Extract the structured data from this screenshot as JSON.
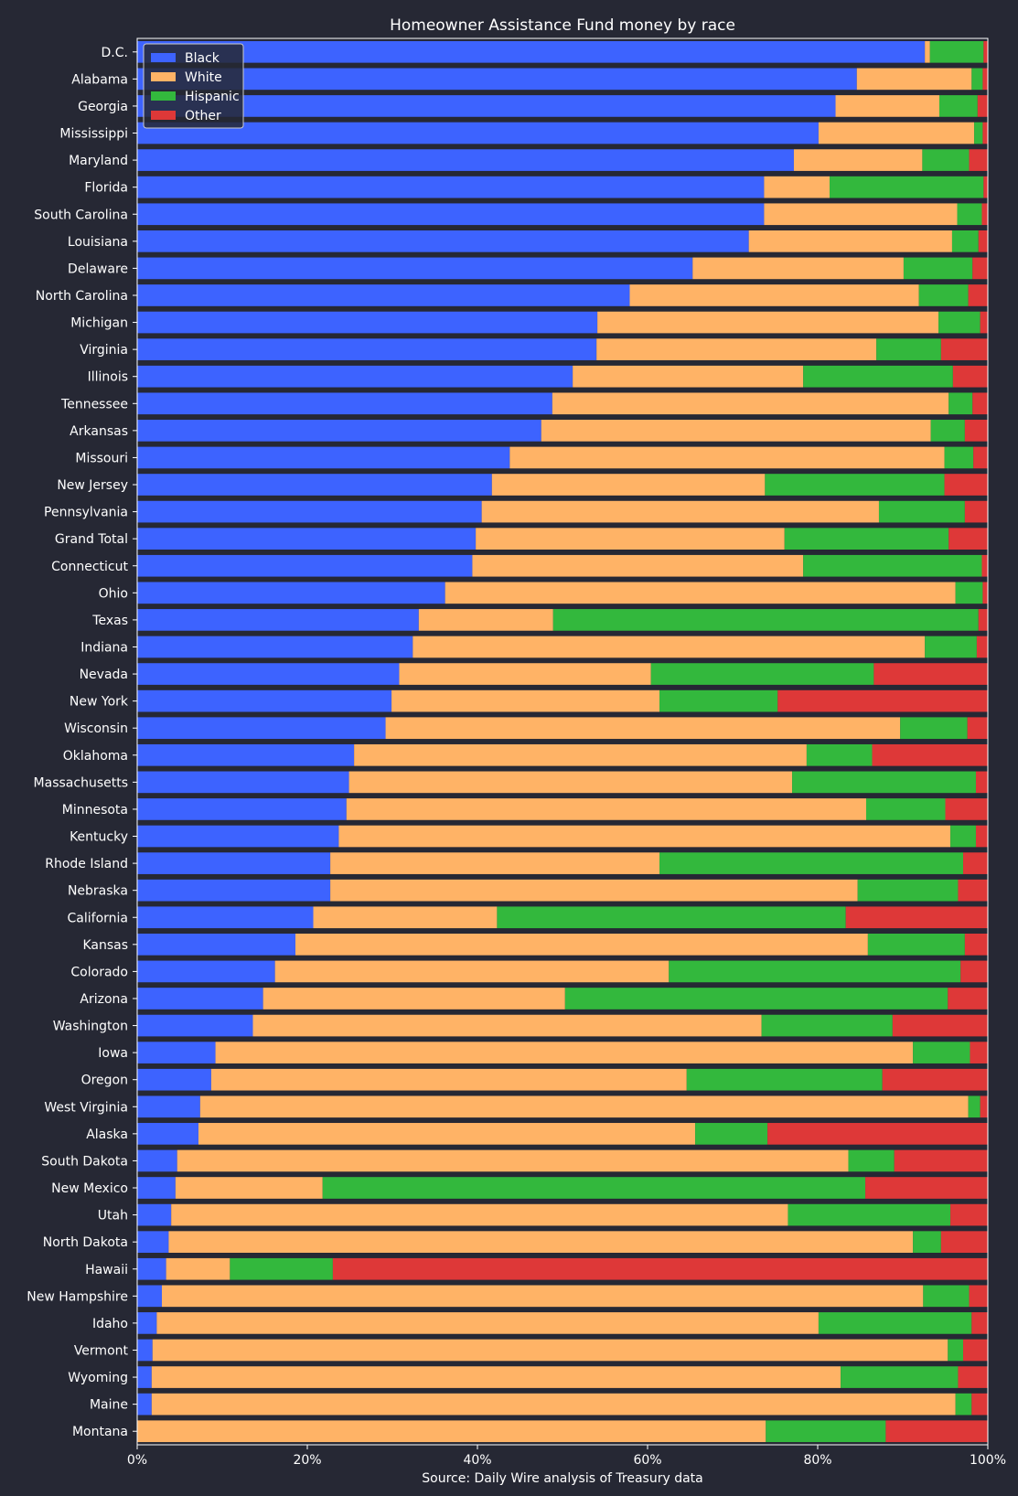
{
  "chart_data": {
    "type": "bar",
    "orientation": "horizontal",
    "stacked": true,
    "title": "Homeowner Assistance Fund money by race",
    "xlabel": "Source: Daily Wire analysis of Treasury data",
    "xlim": [
      0,
      100
    ],
    "x_ticks": [
      "0%",
      "20%",
      "40%",
      "60%",
      "80%",
      "100%"
    ],
    "legend_position": "top-left",
    "grid": false,
    "categories": [
      "D.C.",
      "Alabama",
      "Georgia",
      "Mississippi",
      "Maryland",
      "Florida",
      "South Carolina",
      "Louisiana",
      "Delaware",
      "North Carolina",
      "Michigan",
      "Virginia",
      "Illinois",
      "Tennessee",
      "Arkansas",
      "Missouri",
      "New Jersey",
      "Pennsylvania",
      "Grand Total",
      "Connecticut",
      "Ohio",
      "Texas",
      "Indiana",
      "Nevada",
      "New York",
      "Wisconsin",
      "Oklahoma",
      "Massachusetts",
      "Minnesota",
      "Kentucky",
      "Rhode Island",
      "Nebraska",
      "California",
      "Kansas",
      "Colorado",
      "Arizona",
      "Washington",
      "Iowa",
      "Oregon",
      "West Virginia",
      "Alaska",
      "South Dakota",
      "New Mexico",
      "Utah",
      "North Dakota",
      "Hawaii",
      "New Hampshire",
      "Idaho",
      "Vermont",
      "Wyoming",
      "Maine",
      "Montana"
    ],
    "series": [
      {
        "name": "Black",
        "color": "#3d63ff",
        "values": [
          92.6,
          84.6,
          82.1,
          80.1,
          77.2,
          73.7,
          73.7,
          71.9,
          65.3,
          57.9,
          54.1,
          54.0,
          51.2,
          48.8,
          47.5,
          43.8,
          41.7,
          40.5,
          39.8,
          39.4,
          36.2,
          33.1,
          32.4,
          30.8,
          29.9,
          29.2,
          25.5,
          24.9,
          24.6,
          23.7,
          22.7,
          22.7,
          20.7,
          18.6,
          16.2,
          14.8,
          13.6,
          9.2,
          8.7,
          7.4,
          7.2,
          4.7,
          4.5,
          4.0,
          3.7,
          3.4,
          2.9,
          2.3,
          1.8,
          1.7,
          1.7,
          0.0
        ]
      },
      {
        "name": "White",
        "color": "#ffb366",
        "values": [
          0.6,
          13.5,
          12.2,
          18.3,
          15.1,
          7.7,
          22.7,
          23.9,
          24.8,
          34.0,
          40.1,
          32.9,
          27.1,
          46.6,
          45.8,
          51.1,
          32.1,
          46.7,
          36.3,
          38.9,
          60.0,
          15.8,
          60.2,
          29.6,
          31.5,
          60.5,
          53.2,
          52.1,
          61.1,
          71.9,
          38.7,
          62.0,
          21.6,
          67.3,
          46.3,
          35.5,
          59.8,
          82.0,
          55.9,
          90.3,
          58.4,
          78.9,
          17.3,
          72.5,
          87.5,
          7.5,
          89.5,
          77.8,
          93.5,
          81.0,
          94.5,
          73.9
        ]
      },
      {
        "name": "Hispanic",
        "color": "#33b83d",
        "values": [
          6.3,
          1.3,
          4.5,
          1.0,
          5.5,
          18.1,
          2.9,
          3.1,
          8.1,
          5.8,
          4.9,
          7.6,
          17.6,
          2.8,
          4.0,
          3.4,
          21.1,
          10.1,
          19.3,
          21.0,
          3.2,
          50.0,
          6.1,
          26.2,
          13.9,
          7.9,
          7.7,
          21.6,
          9.3,
          3.0,
          35.7,
          11.8,
          41.0,
          11.4,
          34.3,
          45.0,
          15.4,
          6.7,
          23.0,
          1.4,
          8.5,
          5.4,
          63.8,
          19.1,
          3.3,
          12.1,
          5.4,
          18.0,
          1.8,
          13.8,
          1.9,
          14.1
        ]
      },
      {
        "name": "Other",
        "color": "#de3838",
        "values": [
          0.5,
          0.6,
          1.2,
          0.6,
          2.2,
          0.5,
          0.7,
          1.1,
          1.8,
          2.3,
          0.9,
          5.5,
          4.1,
          1.8,
          2.7,
          1.7,
          5.1,
          2.7,
          4.6,
          0.7,
          0.6,
          1.1,
          1.3,
          13.4,
          24.7,
          2.4,
          13.6,
          1.4,
          5.0,
          1.4,
          2.9,
          3.5,
          16.7,
          2.7,
          3.2,
          4.7,
          11.2,
          2.1,
          12.4,
          0.9,
          25.9,
          11.0,
          14.4,
          4.4,
          5.5,
          77.0,
          2.2,
          1.9,
          2.9,
          3.5,
          1.9,
          12.0
        ]
      }
    ]
  }
}
